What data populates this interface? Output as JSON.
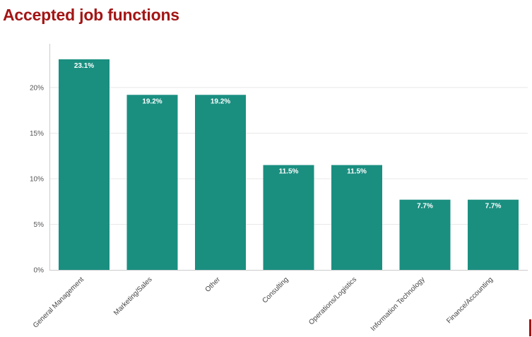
{
  "title": "Accepted job functions",
  "colors": {
    "title": "#a31515",
    "bar": "#1a8f80",
    "grid": "#e8e8e8",
    "axis": "#cccccc"
  },
  "chart_data": {
    "type": "bar",
    "categories": [
      "General Management",
      "Marketing/Sales",
      "Other",
      "Consulting",
      "Operations/Logistics",
      "Information Technology",
      "Finance/Accounting"
    ],
    "values": [
      23.1,
      19.2,
      19.2,
      11.5,
      11.5,
      7.7,
      7.7
    ],
    "data_labels": [
      "23.1%",
      "19.2%",
      "19.2%",
      "11.5%",
      "11.5%",
      "7.7%",
      "7.7%"
    ],
    "y_ticks": [
      0,
      5,
      10,
      15,
      20
    ],
    "y_tick_labels": [
      "0%",
      "5%",
      "10%",
      "15%",
      "20%"
    ],
    "ylim": [
      0,
      24.8
    ],
    "grid": true,
    "legend": "none"
  }
}
